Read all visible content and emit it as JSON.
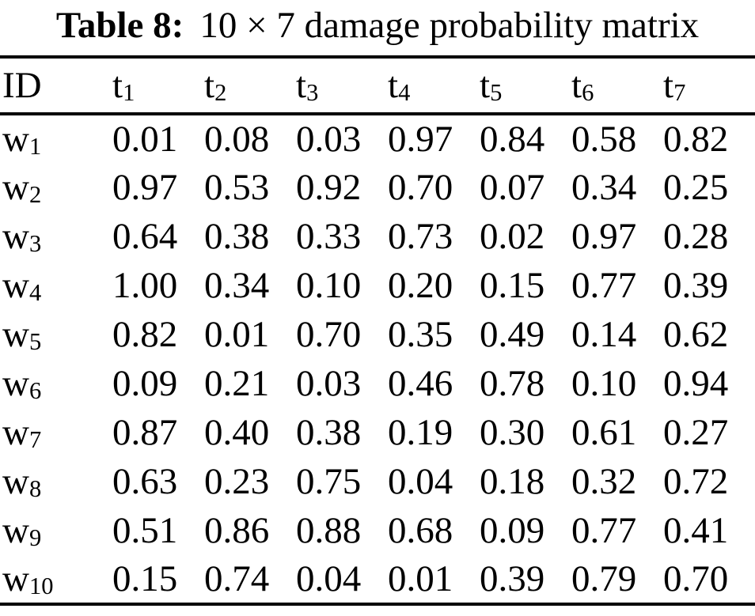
{
  "page": {
    "background": "#ffffff",
    "text_color": "#000000"
  },
  "table": {
    "title": {
      "label_bold": "Table 8:",
      "caption": "10 × 7 damage probability matrix"
    },
    "columns": [
      {
        "base": "ID",
        "sub": ""
      },
      {
        "base": "t",
        "sub": "1"
      },
      {
        "base": "t",
        "sub": "2"
      },
      {
        "base": "t",
        "sub": "3"
      },
      {
        "base": "t",
        "sub": "4"
      },
      {
        "base": "t",
        "sub": "5"
      },
      {
        "base": "t",
        "sub": "6"
      },
      {
        "base": "t",
        "sub": "7"
      }
    ],
    "rows": [
      {
        "id": {
          "base": "w",
          "sub": "1"
        },
        "values": [
          "0.01",
          "0.08",
          "0.03",
          "0.97",
          "0.84",
          "0.58",
          "0.82"
        ]
      },
      {
        "id": {
          "base": "w",
          "sub": "2"
        },
        "values": [
          "0.97",
          "0.53",
          "0.92",
          "0.70",
          "0.07",
          "0.34",
          "0.25"
        ]
      },
      {
        "id": {
          "base": "w",
          "sub": "3"
        },
        "values": [
          "0.64",
          "0.38",
          "0.33",
          "0.73",
          "0.02",
          "0.97",
          "0.28"
        ]
      },
      {
        "id": {
          "base": "w",
          "sub": "4"
        },
        "values": [
          "1.00",
          "0.34",
          "0.10",
          "0.20",
          "0.15",
          "0.77",
          "0.39"
        ]
      },
      {
        "id": {
          "base": "w",
          "sub": "5"
        },
        "values": [
          "0.82",
          "0.01",
          "0.70",
          "0.35",
          "0.49",
          "0.14",
          "0.62"
        ]
      },
      {
        "id": {
          "base": "w",
          "sub": "6"
        },
        "values": [
          "0.09",
          "0.21",
          "0.03",
          "0.46",
          "0.78",
          "0.10",
          "0.94"
        ]
      },
      {
        "id": {
          "base": "w",
          "sub": "7"
        },
        "values": [
          "0.87",
          "0.40",
          "0.38",
          "0.19",
          "0.30",
          "0.61",
          "0.27"
        ]
      },
      {
        "id": {
          "base": "w",
          "sub": "8"
        },
        "values": [
          "0.63",
          "0.23",
          "0.75",
          "0.04",
          "0.18",
          "0.32",
          "0.72"
        ]
      },
      {
        "id": {
          "base": "w",
          "sub": "9"
        },
        "values": [
          "0.51",
          "0.86",
          "0.88",
          "0.68",
          "0.09",
          "0.77",
          "0.41"
        ]
      },
      {
        "id": {
          "base": "w",
          "sub": "10"
        },
        "values": [
          "0.15",
          "0.74",
          "0.04",
          "0.01",
          "0.39",
          "0.79",
          "0.70"
        ]
      }
    ]
  }
}
